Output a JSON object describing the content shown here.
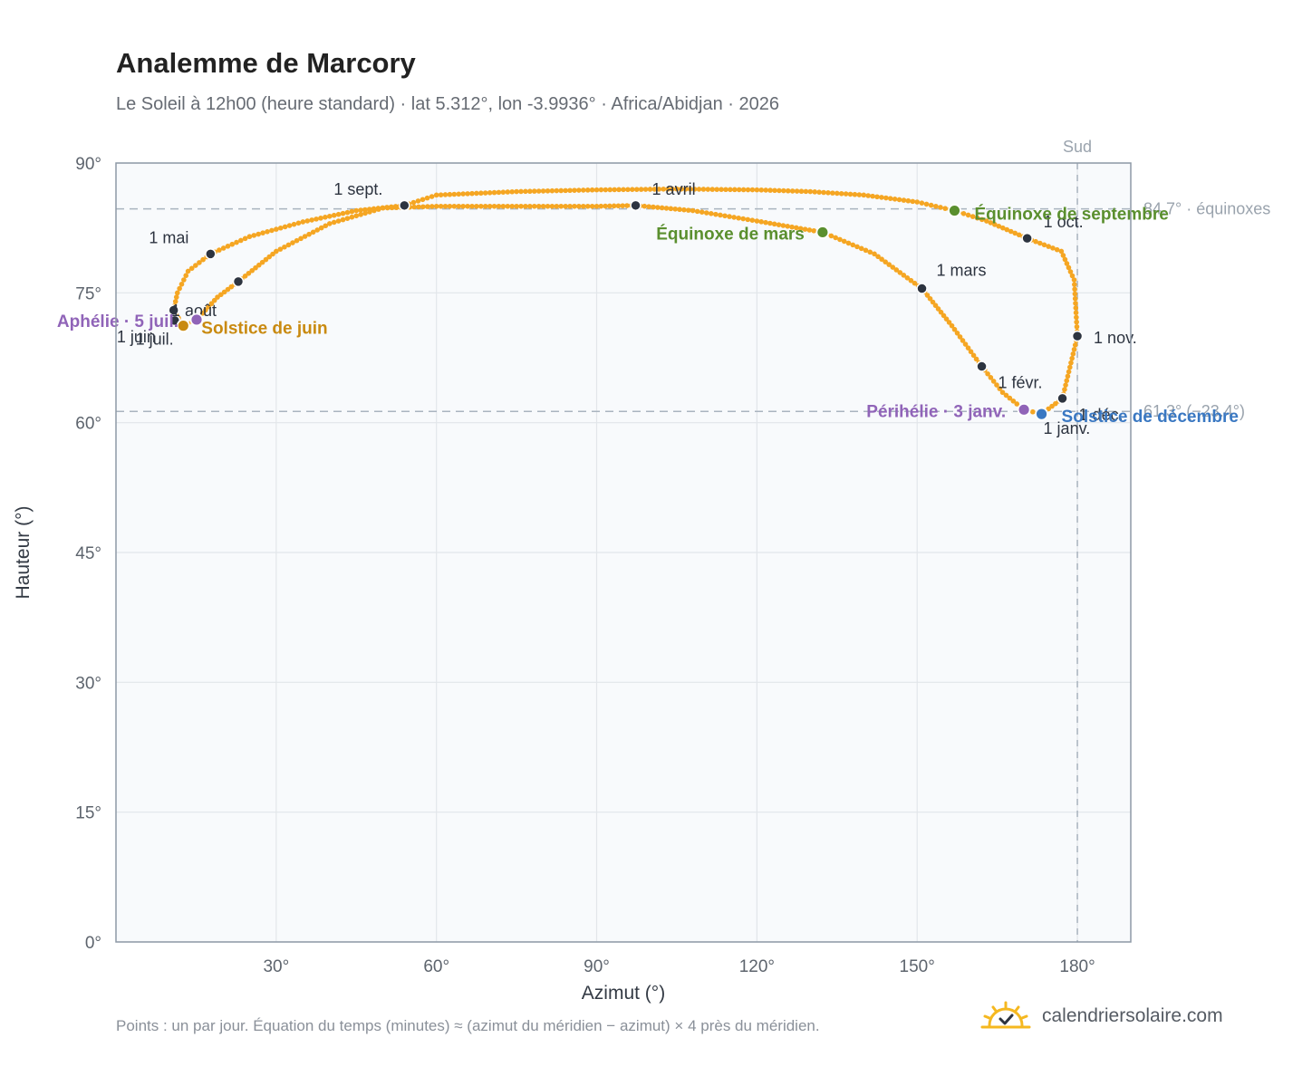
{
  "title": "Analemme de Marcory",
  "subtitle": "Le Soleil à 12h00 (heure standard) · lat 5.312°, lon -3.9936° · Africa/Abidjan · 2026",
  "footnote": "Points : un par jour. Équation du temps (minutes) ≈ (azimut du méridien − azimut) × 4 près du méridien.",
  "brand": {
    "name": "calendriersolaire.com",
    "icon": "sun-check-icon"
  },
  "colors": {
    "curve": "#f5a623",
    "month_marker": "#2d3440",
    "equinox": "#5a8f2e",
    "june_solstice": "#c98a10",
    "december_solstice": "#3a78c2",
    "aphelion_perihelion": "#9064b8",
    "plot_bg": "#f8fafc",
    "grid": "#e2e6ea",
    "ref_line": "#aab4bf"
  },
  "chart_data": {
    "type": "scatter",
    "xlabel": "Azimut (°)",
    "ylabel": "Hauteur (°)",
    "xlim": [
      0,
      190
    ],
    "ylim": [
      0,
      90
    ],
    "x_ticks": [
      30,
      60,
      90,
      120,
      150,
      180
    ],
    "x_tick_labels": [
      "30°",
      "60°",
      "90°",
      "120°",
      "150°",
      "180°"
    ],
    "y_ticks": [
      0,
      15,
      30,
      45,
      60,
      75,
      90
    ],
    "y_tick_labels": [
      "0°",
      "15°",
      "30°",
      "45°",
      "60°",
      "75°",
      "90°"
    ],
    "grid": true,
    "meridian": {
      "azimuth": 180,
      "label": "Sud"
    },
    "reference_lines": [
      {
        "altitude": 84.7,
        "label": "84.7° · équinoxes"
      },
      {
        "altitude": 61.3,
        "label": "61.3° (−23.4°)"
      }
    ],
    "path": [
      [
        173.3,
        61.0
      ],
      [
        177.2,
        62.8
      ],
      [
        180.0,
        70.0
      ],
      [
        179.4,
        76.5
      ],
      [
        177.0,
        79.8
      ],
      [
        170.6,
        81.3
      ],
      [
        163.0,
        83.3
      ],
      [
        157.0,
        84.5
      ],
      [
        150.0,
        85.5
      ],
      [
        140.0,
        86.3
      ],
      [
        130.0,
        86.7
      ],
      [
        120.0,
        86.9
      ],
      [
        105.0,
        87.0
      ],
      [
        90.0,
        86.9
      ],
      [
        75.0,
        86.7
      ],
      [
        60.0,
        86.3
      ],
      [
        54.0,
        85.1
      ],
      [
        45.0,
        84.5
      ],
      [
        35.0,
        83.2
      ],
      [
        25.0,
        81.5
      ],
      [
        17.7,
        79.5
      ],
      [
        13.5,
        77.5
      ],
      [
        11.5,
        75.0
      ],
      [
        10.8,
        73.0
      ],
      [
        12.6,
        71.2
      ],
      [
        15.1,
        71.9
      ],
      [
        19.0,
        74.5
      ],
      [
        22.9,
        76.3
      ],
      [
        30.0,
        79.8
      ],
      [
        40.0,
        83.0
      ],
      [
        50.0,
        84.8
      ],
      [
        60.0,
        85.0
      ],
      [
        75.0,
        85.0
      ],
      [
        90.0,
        85.0
      ],
      [
        97.3,
        85.1
      ],
      [
        108.0,
        84.5
      ],
      [
        120.0,
        83.3
      ],
      [
        132.3,
        82.0
      ],
      [
        142.0,
        79.5
      ],
      [
        150.9,
        75.5
      ],
      [
        156.5,
        71.2
      ],
      [
        162.1,
        66.5
      ],
      [
        166.0,
        63.5
      ],
      [
        170.0,
        61.5
      ],
      [
        173.3,
        61.0
      ]
    ],
    "month_markers": [
      {
        "label": "1 janv.",
        "azimuth": 173.3,
        "altitude": 61.0
      },
      {
        "label": "1 févr.",
        "azimuth": 162.1,
        "altitude": 66.5
      },
      {
        "label": "1 mars",
        "azimuth": 150.9,
        "altitude": 75.5
      },
      {
        "label": "1 avril",
        "azimuth": 97.3,
        "altitude": 85.1
      },
      {
        "label": "1 mai",
        "azimuth": 17.7,
        "altitude": 79.5
      },
      {
        "label": "1 juin",
        "azimuth": 11.0,
        "altitude": 71.8
      },
      {
        "label": "1 juil.",
        "azimuth": 10.8,
        "altitude": 73.0
      },
      {
        "label": "1 août",
        "azimuth": 22.9,
        "altitude": 76.3
      },
      {
        "label": "1 sept.",
        "azimuth": 54.0,
        "altitude": 85.1
      },
      {
        "label": "1 oct.",
        "azimuth": 170.6,
        "altitude": 81.3
      },
      {
        "label": "1 nov.",
        "azimuth": 180.0,
        "altitude": 70.0
      },
      {
        "label": "1 déc.",
        "azimuth": 177.2,
        "altitude": 62.8
      }
    ],
    "events": [
      {
        "label": "Équinoxe de mars",
        "azimuth": 132.3,
        "altitude": 82.0,
        "color": "#5a8f2e"
      },
      {
        "label": "Équinoxe de septembre",
        "azimuth": 157.0,
        "altitude": 84.5,
        "color": "#5a8f2e"
      },
      {
        "label": "Solstice de juin",
        "azimuth": 12.6,
        "altitude": 71.2,
        "color": "#c98a10"
      },
      {
        "label": "Solstice de décembre",
        "azimuth": 173.3,
        "altitude": 61.0,
        "color": "#3a78c2"
      },
      {
        "label": "Aphélie · 5 juil.",
        "azimuth": 15.1,
        "altitude": 71.9,
        "color": "#9064b8"
      },
      {
        "label": "Périhélie · 3 janv.",
        "azimuth": 170.0,
        "altitude": 61.5,
        "color": "#9064b8"
      }
    ]
  }
}
